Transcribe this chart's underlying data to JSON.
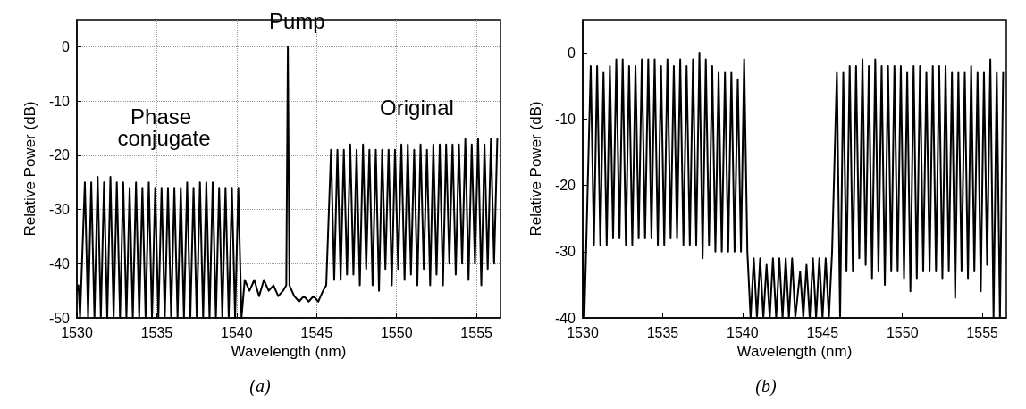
{
  "chart_data": [
    {
      "type": "line",
      "xlabel": "Wavelength (nm)",
      "ylabel": "Relative Power (dB)",
      "xlim": [
        1530,
        1556.5
      ],
      "xticks": [
        1530,
        1535,
        1540,
        1545,
        1550,
        1555
      ],
      "ylim": [
        -50,
        5
      ],
      "yticks": [
        -50,
        -40,
        -30,
        -20,
        -10,
        0
      ],
      "grid": true,
      "marker": "none",
      "line_style": "solid",
      "annotations": [
        "Pump",
        "Phase conjugate",
        "Original",
        "(a)"
      ],
      "x": [
        1530.0,
        1530.1,
        1530.2,
        1530.5,
        1530.7,
        1530.9,
        1531.1,
        1531.3,
        1531.5,
        1531.7,
        1531.9,
        1532.1,
        1532.3,
        1532.5,
        1532.7,
        1532.9,
        1533.1,
        1533.3,
        1533.5,
        1533.7,
        1533.9,
        1534.1,
        1534.3,
        1534.5,
        1534.7,
        1534.9,
        1535.1,
        1535.3,
        1535.5,
        1535.7,
        1535.9,
        1536.1,
        1536.3,
        1536.5,
        1536.7,
        1536.9,
        1537.1,
        1537.3,
        1537.5,
        1537.7,
        1537.9,
        1538.1,
        1538.3,
        1538.5,
        1538.7,
        1538.9,
        1539.1,
        1539.3,
        1539.5,
        1539.7,
        1539.9,
        1540.1,
        1540.3,
        1540.5,
        1540.8,
        1541.1,
        1541.4,
        1541.7,
        1542.0,
        1542.3,
        1542.6,
        1542.9,
        1543.1,
        1543.2,
        1543.3,
        1543.6,
        1543.9,
        1544.2,
        1544.5,
        1544.8,
        1545.1,
        1545.4,
        1545.6,
        1545.9,
        1546.1,
        1546.3,
        1546.5,
        1546.7,
        1546.9,
        1547.1,
        1547.3,
        1547.5,
        1547.7,
        1547.9,
        1548.1,
        1548.3,
        1548.5,
        1548.7,
        1548.9,
        1549.1,
        1549.3,
        1549.5,
        1549.7,
        1549.9,
        1550.1,
        1550.3,
        1550.5,
        1550.7,
        1550.9,
        1551.1,
        1551.3,
        1551.5,
        1551.7,
        1551.9,
        1552.1,
        1552.3,
        1552.5,
        1552.7,
        1552.9,
        1553.1,
        1553.3,
        1553.5,
        1553.7,
        1553.9,
        1554.1,
        1554.3,
        1554.5,
        1554.7,
        1554.9,
        1555.1,
        1555.3,
        1555.5,
        1555.7,
        1555.9,
        1556.1,
        1556.3
      ],
      "series": [
        {
          "color": "#000000",
          "values": [
            -45,
            -44,
            -50,
            -25,
            -50,
            -25,
            -50,
            -24,
            -50,
            -25,
            -50,
            -24,
            -50,
            -25,
            -50,
            -25,
            -50,
            -26,
            -50,
            -25,
            -50,
            -26,
            -50,
            -25,
            -50,
            -26,
            -50,
            -26,
            -50,
            -26,
            -50,
            -26,
            -50,
            -26,
            -50,
            -25,
            -50,
            -26,
            -50,
            -25,
            -50,
            -25,
            -50,
            -25,
            -50,
            -26,
            -50,
            -26,
            -50,
            -26,
            -50,
            -26,
            -50,
            -43,
            -45,
            -43,
            -46,
            -43,
            -45,
            -44,
            -46,
            -45,
            -44,
            0,
            -44,
            -46,
            -47,
            -46,
            -47,
            -46,
            -47,
            -45,
            -44,
            -19,
            -43,
            -19,
            -43,
            -19,
            -42,
            -18,
            -42,
            -19,
            -44,
            -18,
            -41,
            -19,
            -44,
            -19,
            -45,
            -19,
            -41,
            -19,
            -44,
            -19,
            -41,
            -18,
            -43,
            -18,
            -42,
            -19,
            -44,
            -18,
            -41,
            -19,
            -44,
            -18,
            -42,
            -18,
            -44,
            -18,
            -40,
            -18,
            -42,
            -18,
            -40,
            -17,
            -43,
            -18,
            -40,
            -17,
            -44,
            -18,
            -41,
            -17,
            -40,
            -17
          ]
        }
      ]
    },
    {
      "type": "line",
      "xlabel": "Wavelength (nm)",
      "ylabel": "Relative Power (dB)",
      "xlim": [
        1530,
        1556.5
      ],
      "xticks": [
        1530,
        1535,
        1540,
        1545,
        1550,
        1555
      ],
      "ylim": [
        -40,
        5
      ],
      "yticks": [
        -40,
        -30,
        -20,
        -10,
        0
      ],
      "marker": "none",
      "line_style": "solid",
      "annotations": [
        "(b)"
      ],
      "x": [
        1530.0,
        1530.1,
        1530.2,
        1530.5,
        1530.7,
        1530.9,
        1531.1,
        1531.3,
        1531.5,
        1531.7,
        1531.9,
        1532.1,
        1532.3,
        1532.5,
        1532.7,
        1532.9,
        1533.1,
        1533.3,
        1533.5,
        1533.7,
        1533.9,
        1534.1,
        1534.3,
        1534.5,
        1534.7,
        1534.9,
        1535.1,
        1535.3,
        1535.5,
        1535.7,
        1535.9,
        1536.1,
        1536.3,
        1536.5,
        1536.7,
        1536.9,
        1537.1,
        1537.3,
        1537.5,
        1537.7,
        1537.9,
        1538.1,
        1538.3,
        1538.5,
        1538.7,
        1538.9,
        1539.1,
        1539.3,
        1539.5,
        1539.7,
        1539.9,
        1540.1,
        1540.3,
        1540.5,
        1540.7,
        1540.9,
        1541.1,
        1541.3,
        1541.5,
        1541.7,
        1541.9,
        1542.1,
        1542.3,
        1542.5,
        1542.7,
        1542.9,
        1543.1,
        1543.3,
        1543.6,
        1543.8,
        1544.0,
        1544.2,
        1544.4,
        1544.6,
        1544.8,
        1545.0,
        1545.2,
        1545.4,
        1545.6,
        1545.9,
        1546.1,
        1546.3,
        1546.5,
        1546.7,
        1546.9,
        1547.1,
        1547.3,
        1547.5,
        1547.7,
        1547.9,
        1548.1,
        1548.3,
        1548.5,
        1548.7,
        1548.9,
        1549.1,
        1549.3,
        1549.5,
        1549.7,
        1549.9,
        1550.1,
        1550.3,
        1550.5,
        1550.7,
        1550.9,
        1551.1,
        1551.3,
        1551.5,
        1551.7,
        1551.9,
        1552.1,
        1552.3,
        1552.5,
        1552.7,
        1552.9,
        1553.1,
        1553.3,
        1553.5,
        1553.7,
        1553.9,
        1554.1,
        1554.3,
        1554.5,
        1554.7,
        1554.9,
        1555.1,
        1555.3,
        1555.5,
        1555.7,
        1555.9,
        1556.1,
        1556.3
      ],
      "series": [
        {
          "color": "#000000",
          "values": [
            -30,
            -40,
            -31,
            -2,
            -29,
            -2,
            -29,
            -3,
            -29,
            -2,
            -28,
            -1,
            -28,
            -1,
            -29,
            -2,
            -29,
            -2,
            -28,
            -1,
            -28,
            -1,
            -28,
            -1,
            -29,
            -2,
            -29,
            -1,
            -28,
            -2,
            -28,
            -1,
            -29,
            -2,
            -29,
            -1,
            -29,
            0,
            -31,
            -1,
            -29,
            -2,
            -30,
            -3,
            -30,
            -3,
            -30,
            -3,
            -30,
            -4,
            -30,
            -1,
            -30,
            -40,
            -31,
            -40,
            -31,
            -40,
            -32,
            -40,
            -31,
            -40,
            -31,
            -40,
            -31,
            -40,
            -31,
            -40,
            -33,
            -40,
            -32,
            -40,
            -31,
            -40,
            -31,
            -40,
            -31,
            -40,
            -30,
            -3,
            -40,
            -3,
            -33,
            -2,
            -33,
            -2,
            -31,
            -1,
            -32,
            -2,
            -34,
            -1,
            -33,
            -2,
            -35,
            -2,
            -33,
            -2,
            -33,
            -2,
            -34,
            -3,
            -36,
            -2,
            -34,
            -2,
            -33,
            -3,
            -33,
            -2,
            -33,
            -2,
            -34,
            -2,
            -33,
            -3,
            -37,
            -3,
            -33,
            -3,
            -34,
            -2,
            -33,
            -3,
            -36,
            -3,
            -32,
            -1,
            -40,
            -3,
            -40,
            -3
          ]
        }
      ]
    }
  ]
}
